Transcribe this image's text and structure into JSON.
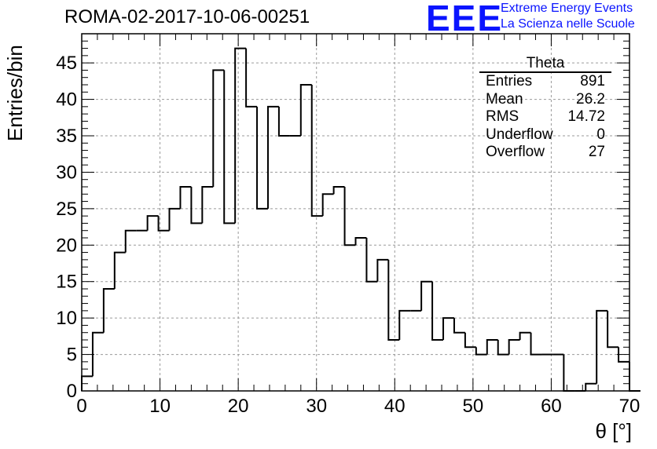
{
  "title": "ROMA-02-2017-10-06-00251",
  "logo": {
    "text": "EEE",
    "line1": "Extreme Energy Events",
    "line2": "La Scienza nelle Scuole",
    "color": "#0a14ff"
  },
  "stats": {
    "title": "Theta",
    "rows": [
      {
        "label": "Entries",
        "value": "891"
      },
      {
        "label": "Mean",
        "value": "26.2"
      },
      {
        "label": "RMS",
        "value": "14.72"
      },
      {
        "label": "Underflow",
        "value": "0"
      },
      {
        "label": "Overflow",
        "value": "27"
      }
    ]
  },
  "chart_data": {
    "type": "bar",
    "histogram": true,
    "xlabel": "θ [°]",
    "ylabel": "Entries/bin",
    "xlim": [
      0,
      70
    ],
    "ylim": [
      0,
      49
    ],
    "xticks": [
      "0",
      "10",
      "20",
      "30",
      "40",
      "50",
      "60",
      "70"
    ],
    "yticks": [
      "0",
      "5",
      "10",
      "15",
      "20",
      "25",
      "30",
      "35",
      "40",
      "45"
    ],
    "grid": true,
    "bin_width": 1.4,
    "bin_edges_start": 0,
    "values": [
      2,
      8,
      14,
      19,
      22,
      22,
      24,
      22,
      25,
      28,
      23,
      28,
      44,
      23,
      47,
      39,
      25,
      39,
      35,
      35,
      42,
      24,
      27,
      28,
      20,
      21,
      15,
      18,
      7,
      11,
      11,
      15,
      7,
      10,
      8,
      6,
      5,
      7,
      5,
      7,
      8,
      5,
      5,
      5,
      0,
      0,
      1,
      11,
      6,
      4,
      0
    ],
    "line_color": "#000000"
  }
}
